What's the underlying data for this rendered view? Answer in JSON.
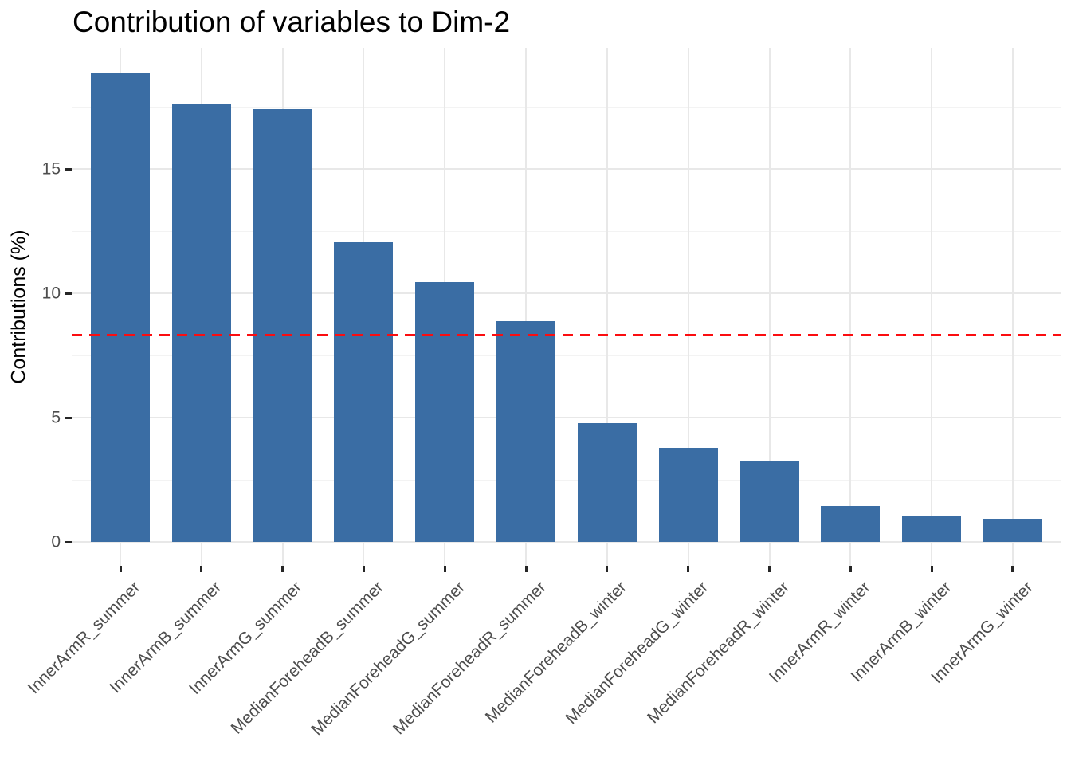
{
  "title": "Contribution of variables to Dim-2",
  "colors": {
    "bar_fill": "#3a6da4",
    "reference_line": "#fb0d10",
    "grid_major": "#e8e8e8",
    "grid_minor": "#f3f3f3",
    "axis_text": "#4d4d4d",
    "tick_mark": "#262626",
    "title_text": "#000000",
    "background": "#ffffff"
  },
  "chart_data": {
    "type": "bar",
    "title": "Contribution of variables to Dim-2",
    "xlabel": "",
    "ylabel": "Contributions (%)",
    "categories": [
      "InnerArmR_summer",
      "InnerArmB_summer",
      "InnerArmG_summer",
      "MedianForeheadB_summer",
      "MedianForeheadG_summer",
      "MedianForeheadR_summer",
      "MedianForeheadB_winter",
      "MedianForeheadG_winter",
      "MedianForeheadR_winter",
      "InnerArmR_winter",
      "InnerArmB_winter",
      "InnerArmG_winter"
    ],
    "values": [
      18.9,
      17.6,
      17.4,
      12.05,
      10.45,
      8.9,
      4.8,
      3.8,
      3.25,
      1.45,
      1.05,
      0.95
    ],
    "yticks": [
      0,
      5,
      10,
      15
    ],
    "yticks_minor": [
      2.5,
      7.5,
      12.5,
      17.5
    ],
    "ylim": [
      -0.95,
      19.88
    ],
    "grid": true,
    "legend_position": "none",
    "reference_line": {
      "value": 8.33,
      "style": "dashed",
      "color": "red"
    },
    "bar_orientation": "vertical",
    "x_label_angle": 45
  }
}
